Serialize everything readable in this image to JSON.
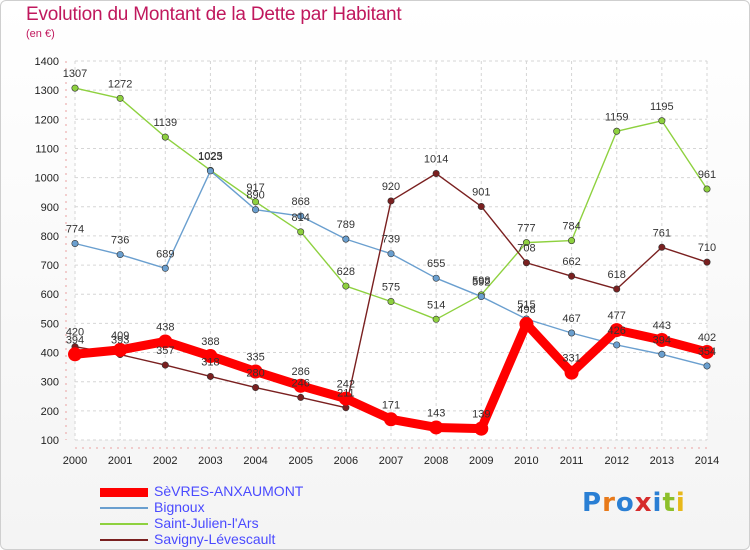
{
  "header": {
    "title": "Evolution du Montant de la Dette par Habitant",
    "unit": "(en €)"
  },
  "logo": {
    "text": "Proxiti",
    "colors": [
      "#2a7fd4",
      "#e87a1a",
      "#2a7fd4",
      "#d62c2c",
      "#2a7fd4",
      "#8dbf2a",
      "#e8b81a"
    ]
  },
  "chart_data": {
    "type": "line",
    "x": [
      2000,
      2001,
      2002,
      2003,
      2004,
      2005,
      2006,
      2007,
      2008,
      2009,
      2010,
      2011,
      2012,
      2013,
      2014
    ],
    "ylim": [
      100,
      1400
    ],
    "yticks": [
      100,
      200,
      300,
      400,
      500,
      600,
      700,
      800,
      900,
      1000,
      1100,
      1200,
      1300,
      1400
    ],
    "grid": true,
    "legend_position": "bottom-left",
    "series": [
      {
        "name": "SèVRES-ANXAUMONT",
        "color": "#ff0000",
        "values": [
          394,
          409,
          438,
          388,
          335,
          286,
          242,
          171,
          143,
          139,
          498,
          331,
          477,
          443,
          402
        ],
        "labels": [
          "394",
          "409",
          "438",
          "388",
          "335",
          "286",
          "242",
          "171",
          "143",
          "139",
          "498",
          "331",
          "477",
          "443",
          "402"
        ]
      },
      {
        "name": "Bignoux",
        "color": "#6a9fcf",
        "values": [
          774,
          736,
          689,
          1023,
          890,
          868,
          789,
          739,
          655,
          592,
          515,
          467,
          426,
          394,
          354
        ],
        "labels": [
          "774",
          "736",
          "689",
          "1023",
          "890",
          "868",
          "789",
          "739",
          "655",
          "592",
          "515",
          "467",
          "426",
          "394",
          "354"
        ]
      },
      {
        "name": "Saint-Julien-l'Ars",
        "color": "#8ed13f",
        "values": [
          1307,
          1272,
          1139,
          1025,
          917,
          814,
          628,
          575,
          514,
          598,
          777,
          784,
          1159,
          1195,
          961
        ],
        "labels": [
          "1307",
          "1272",
          "1139",
          "1025",
          "917",
          "814",
          "628",
          "575",
          "514",
          "598",
          "777",
          "784",
          "1159",
          "1195",
          "961"
        ]
      },
      {
        "name": "Savigny-Lévescault",
        "color": "#7a2020",
        "values": [
          420,
          393,
          357,
          318,
          280,
          246,
          211,
          920,
          1014,
          901,
          708,
          662,
          618,
          761,
          710
        ],
        "labels": [
          "420",
          "393",
          "357",
          "318",
          "280",
          "246",
          "211",
          "920",
          "1014",
          "901",
          "708",
          "662",
          "618",
          "761",
          "710"
        ]
      }
    ]
  }
}
